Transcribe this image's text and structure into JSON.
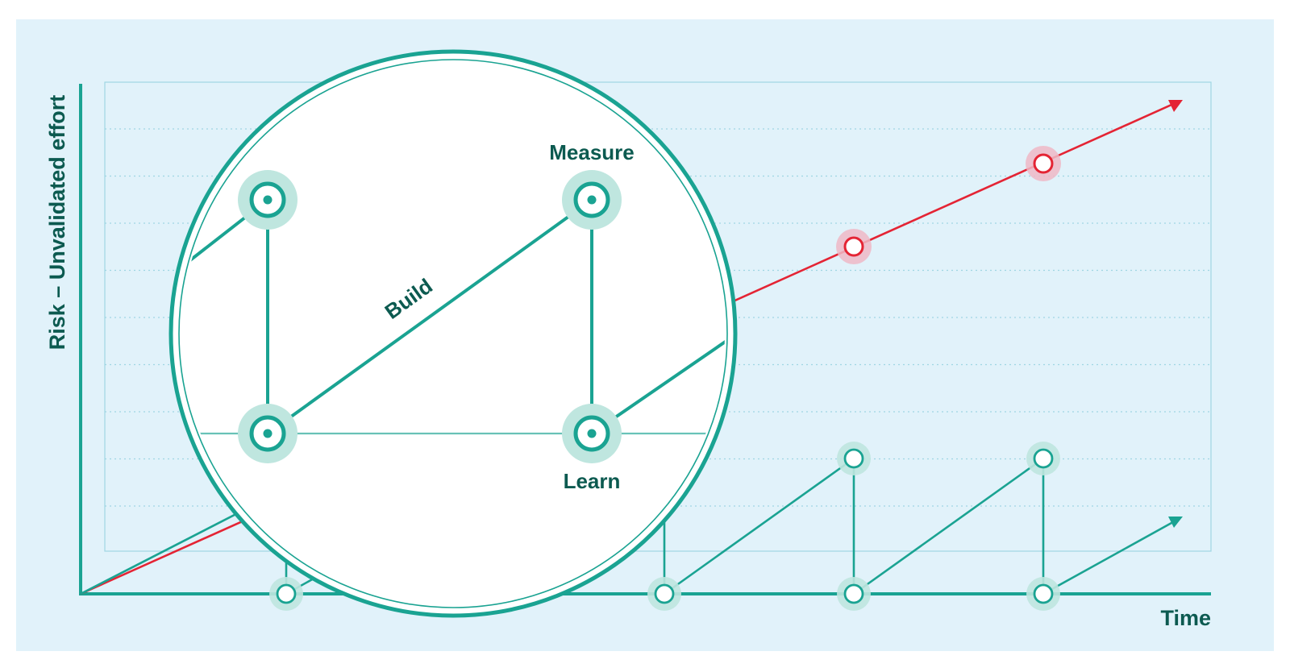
{
  "colors": {
    "panel": "#e1f2fa",
    "accent": "#1aa392",
    "dark_text": "#0c5a50",
    "risk_red": "#e42434",
    "halo": "#bfe6df",
    "red_halo": "#efb9c6",
    "gridline": "#9fd6e3",
    "white": "#ffffff"
  },
  "axes": {
    "y_label": "Risk – Unvalidated effort",
    "x_label": "Time"
  },
  "loop": {
    "build_label": "Build",
    "measure_label": "Measure",
    "learn_label": "Learn"
  },
  "icons": {
    "cycle_node": "circle-node-icon",
    "arrow": "arrow-head-icon"
  }
}
